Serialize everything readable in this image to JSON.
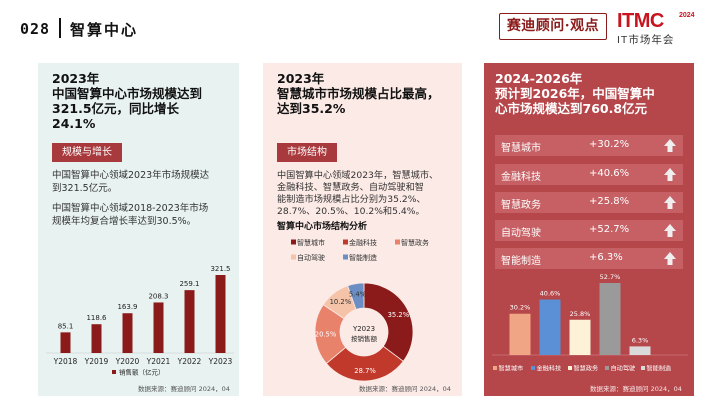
{
  "header": {
    "page_number": "028",
    "section_title": "智算中心",
    "badge": "赛迪顾问·观点",
    "logo_main": "ITMC",
    "logo_year": "2024",
    "logo_sub": "IT市场年会"
  },
  "panel1": {
    "title_lines": [
      "2023年",
      "中国智算中心市场规模达到",
      "321.5亿元，同比增长",
      "24.1%"
    ],
    "tag": "规模与增长",
    "text1_lines": [
      "中国智算中心领域2023年市场规模达",
      "到321.5亿元。"
    ],
    "text2_lines": [
      "中国智算中心领域2018-2023年市场",
      "规模年均复合增长率达到30.5%。"
    ],
    "source": "数据来源：赛迪顾问  2024，04"
  },
  "panel2": {
    "title_lines": [
      "2023年",
      "智慧城市市场规模占比最高，",
      "达到35.2%"
    ],
    "tag": "市场结构",
    "text_lines": [
      "中国智算中心领域2023年，智慧城市、",
      "金融科技、智慧政务、自动驾驶和智",
      "能制造市场规模占比分别为35.2%、",
      "28.7%、20.5%、10.2%和5.4%。"
    ],
    "source": "数据来源：赛迪顾问  2024，04"
  },
  "panel3": {
    "title_lines": [
      "2024-2026年",
      "预计到2026年，中国智算中",
      "心市场规模达到760.8亿元"
    ],
    "rows": [
      {
        "label": "智慧城市",
        "value": "+30.2%",
        "icon": "up-arrow-icon"
      },
      {
        "label": "金融科技",
        "value": "+40.6%",
        "icon": "up-arrow-icon"
      },
      {
        "label": "智慧政务",
        "value": "+25.8%",
        "icon": "up-arrow-icon"
      },
      {
        "label": "自动驾驶",
        "value": "+52.7%",
        "icon": "up-arrow-icon"
      },
      {
        "label": "智能制造",
        "value": "+6.3%",
        "icon": "up-arrow-icon"
      }
    ],
    "source": "数据来源：赛迪顾问  2024，04"
  },
  "colors": {
    "dark_red": "#8b1a1a",
    "bar_red": "#8b1a1a",
    "tag_red": "#a83a3e",
    "panel3_bg": "#b5474b",
    "pie": [
      "#8b1a1a",
      "#c0392b",
      "#e8826b",
      "#f5c3a8",
      "#6b8fc4"
    ],
    "bars3": [
      "#f0a584",
      "#5b8fd6",
      "#fdf1d8",
      "#9a9a9a",
      "#dadada"
    ]
  },
  "chart_data": [
    {
      "type": "bar",
      "title": "",
      "categories": [
        "Y2018",
        "Y2019",
        "Y2020",
        "Y2021",
        "Y2022",
        "Y2023"
      ],
      "series": [
        {
          "name": "销售额（亿元）",
          "values": [
            85.1,
            118.6,
            163.9,
            208.3,
            259.1,
            321.5
          ]
        }
      ],
      "value_labels": [
        "85.1",
        "118.6",
        "163.9",
        "208.3",
        "259.1",
        "321.5"
      ],
      "legend": "bottom",
      "ylim": [
        0,
        340
      ]
    },
    {
      "type": "pie",
      "title": "智算中心市场结构分析",
      "center_label_lines": [
        "Y2023",
        "按销售额"
      ],
      "categories": [
        "智慧城市",
        "金融科技",
        "智慧政务",
        "自动驾驶",
        "智能制造"
      ],
      "values": [
        35.2,
        28.7,
        20.5,
        10.2,
        5.4
      ],
      "value_labels": [
        "35.2%",
        "28.7%",
        "20.5%",
        "10.2%",
        "5.4%"
      ],
      "legend": "top"
    },
    {
      "type": "bar",
      "title": "",
      "categories": [
        "智慧城市",
        "金融科技",
        "智慧政务",
        "自动驾驶",
        "智能制造"
      ],
      "values": [
        30.2,
        40.6,
        25.8,
        52.7,
        6.3
      ],
      "value_labels": [
        "30.2%",
        "40.6%",
        "25.8%",
        "52.7%",
        "6.3%"
      ],
      "legend": "bottom",
      "ylim": [
        0,
        60
      ]
    }
  ]
}
